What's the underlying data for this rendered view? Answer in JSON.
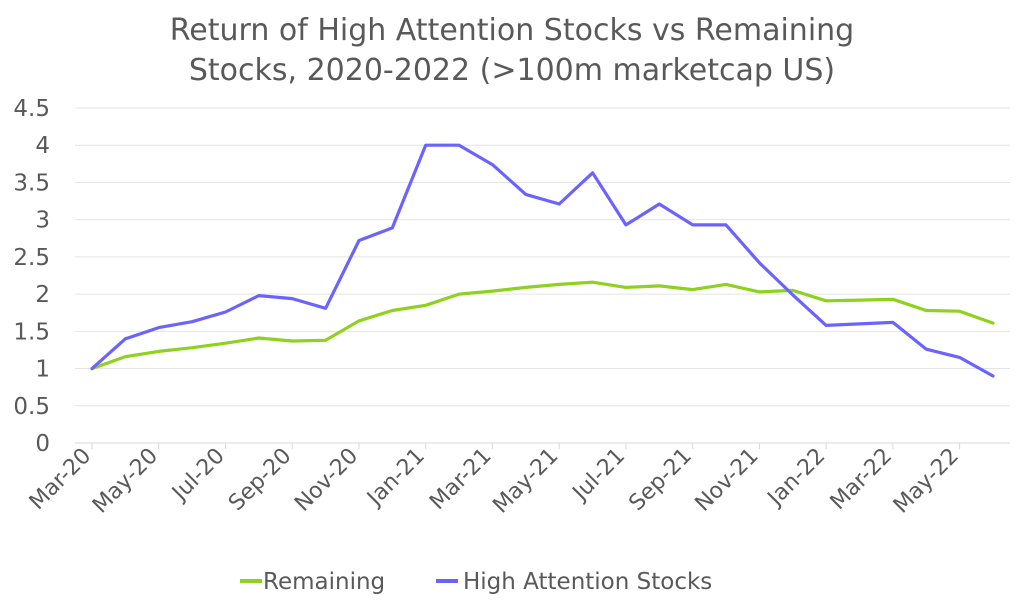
{
  "chart_data": {
    "type": "line",
    "title": "Return of High Attention Stocks vs Remaining Stocks, 2020-2022 (>100m marketcap US)",
    "title_lines": [
      "Return of High Attention Stocks vs Remaining",
      "Stocks, 2020-2022 (>100m marketcap US)"
    ],
    "xlabel": "",
    "ylabel": "",
    "ylim": [
      0,
      4.5
    ],
    "yticks": [
      "0",
      "0.5",
      "1",
      "1.5",
      "2",
      "2.5",
      "3",
      "3.5",
      "4",
      "4.5"
    ],
    "ytick_values": [
      0,
      0.5,
      1,
      1.5,
      2,
      2.5,
      3,
      3.5,
      4,
      4.5
    ],
    "x": [
      "Mar-20",
      "Apr-20",
      "May-20",
      "Jun-20",
      "Jul-20",
      "Aug-20",
      "Sep-20",
      "Oct-20",
      "Nov-20",
      "Dec-20",
      "Jan-21",
      "Feb-21",
      "Mar-21",
      "Apr-21",
      "May-21",
      "Jun-21",
      "Jul-21",
      "Aug-21",
      "Sep-21",
      "Oct-21",
      "Nov-21",
      "Dec-21",
      "Jan-22",
      "Feb-22",
      "Mar-22",
      "Apr-22",
      "May-22",
      "Jun-22"
    ],
    "xtick_labels": [
      "Mar-20",
      "May-20",
      "Jul-20",
      "Sep-20",
      "Nov-20",
      "Jan-21",
      "Mar-21",
      "May-21",
      "Jul-21",
      "Sep-21",
      "Nov-21",
      "Jan-22",
      "Mar-22",
      "May-22"
    ],
    "series": [
      {
        "name": "Remaining",
        "color": "#8fd11f",
        "values": [
          1.0,
          1.16,
          1.23,
          1.28,
          1.34,
          1.41,
          1.37,
          1.38,
          1.64,
          1.78,
          1.85,
          2.0,
          2.04,
          2.09,
          2.13,
          2.16,
          2.09,
          2.11,
          2.06,
          2.13,
          2.03,
          2.05,
          1.91,
          1.92,
          1.93,
          1.78,
          1.77,
          1.61
        ]
      },
      {
        "name": "High Attention Stocks",
        "color": "#6b63ff",
        "values": [
          1.0,
          1.4,
          1.55,
          1.63,
          1.76,
          1.98,
          1.94,
          1.81,
          2.72,
          2.89,
          4.0,
          4.0,
          3.74,
          3.34,
          3.21,
          3.63,
          2.93,
          3.21,
          2.93,
          2.93,
          2.42,
          1.99,
          1.58,
          1.6,
          1.62,
          1.26,
          1.15,
          0.9
        ]
      }
    ],
    "legend_position": "bottom"
  }
}
